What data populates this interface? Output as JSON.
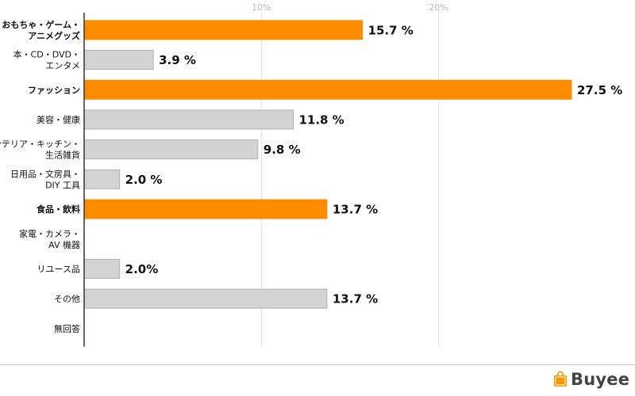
{
  "colors": {
    "highlight": "#FF8C00",
    "normal": "#D3D3D3",
    "normal_stroke": "#B0B0B0",
    "axis": "#333333",
    "grid": "#E2E2E2",
    "tick_text": "#BBBBBB",
    "label_text": "#111111"
  },
  "chart_data": {
    "type": "bar",
    "orientation": "horizontal",
    "title": "",
    "xlabel": "",
    "ylabel": "",
    "xlim": [
      0,
      27.5
    ],
    "xticks": [
      {
        "value": 10,
        "label": "10%"
      },
      {
        "value": 20,
        "label": "20%"
      }
    ],
    "grid": true,
    "categories": [
      {
        "lines": [
          "おもちゃ・ゲーム・",
          "アニメグッズ"
        ],
        "bold": true
      },
      {
        "lines": [
          "本・CD・DVD・",
          "エンタメ"
        ],
        "bold": false
      },
      {
        "lines": [
          "ファッション"
        ],
        "bold": true
      },
      {
        "lines": [
          "美容・健康"
        ],
        "bold": false
      },
      {
        "lines": [
          "インテリア・キッチン・",
          "生活雑貨"
        ],
        "bold": false
      },
      {
        "lines": [
          "日用品・文房具・",
          "DIY 工具"
        ],
        "bold": false
      },
      {
        "lines": [
          "食品・飲料"
        ],
        "bold": true
      },
      {
        "lines": [
          "家電・カメラ・",
          "AV 機器"
        ],
        "bold": false
      },
      {
        "lines": [
          "リユース品"
        ],
        "bold": false
      },
      {
        "lines": [
          "その他"
        ],
        "bold": false
      },
      {
        "lines": [
          "無回答"
        ],
        "bold": false
      }
    ],
    "values": [
      15.7,
      3.9,
      27.5,
      11.8,
      9.8,
      2.0,
      13.7,
      null,
      2.0,
      13.7,
      null
    ],
    "value_labels": [
      "15.7 %",
      "3.9 %",
      "27.5 %",
      "11.8 %",
      "9.8 %",
      "2.0 %",
      "13.7 %",
      "",
      "2.0%",
      "13.7 %",
      ""
    ],
    "highlighted": [
      true,
      false,
      true,
      false,
      false,
      false,
      true,
      false,
      false,
      false,
      false
    ]
  },
  "logo": {
    "text": "Buyee",
    "mark_color": "#F39800"
  }
}
